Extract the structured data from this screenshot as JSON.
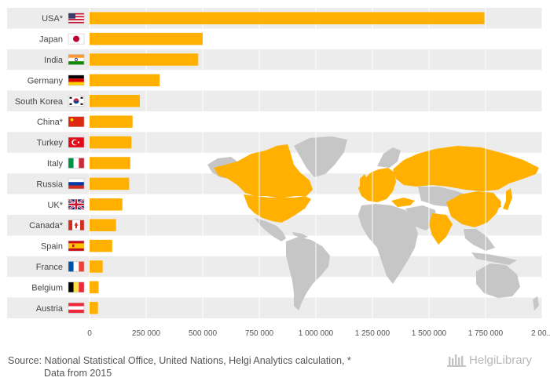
{
  "chart_data": {
    "type": "bar",
    "orientation": "horizontal",
    "categories": [
      "USA*",
      "Japan",
      "India",
      "Germany",
      "South Korea",
      "China*",
      "Turkey",
      "Italy",
      "Russia",
      "UK*",
      "Canada*",
      "Spain",
      "France",
      "Belgium",
      "Austria"
    ],
    "values": [
      1745000,
      500000,
      480000,
      310000,
      222000,
      190000,
      185000,
      180000,
      175000,
      145000,
      117000,
      100000,
      58000,
      40000,
      37000
    ],
    "title": "",
    "xlabel": "",
    "ylabel": "",
    "xlim": [
      0,
      2000000
    ],
    "x_ticks": [
      0,
      250000,
      500000,
      750000,
      1000000,
      1250000,
      1500000,
      1750000,
      2000000
    ],
    "x_tick_labels": [
      "0",
      "250 000",
      "500 000",
      "750 000",
      "1 000 000",
      "1 250 000",
      "1 500 000",
      "1 750 000",
      "2 00..."
    ],
    "grid": "vertical",
    "bar_color": "#FFB000",
    "background_map": "world map with listed countries highlighted in bar color"
  },
  "flags": [
    "usa-flag-icon",
    "japan-flag-icon",
    "india-flag-icon",
    "germany-flag-icon",
    "south-korea-flag-icon",
    "china-flag-icon",
    "turkey-flag-icon",
    "italy-flag-icon",
    "russia-flag-icon",
    "uk-flag-icon",
    "canada-flag-icon",
    "spain-flag-icon",
    "france-flag-icon",
    "belgium-flag-icon",
    "austria-flag-icon"
  ],
  "footer": {
    "source_line1": "Source: National Statistical Office, United Nations, Helgi Analytics calculation, *",
    "source_line2": "Data from 2015"
  },
  "brand": {
    "name": "HelgiLibrary"
  }
}
